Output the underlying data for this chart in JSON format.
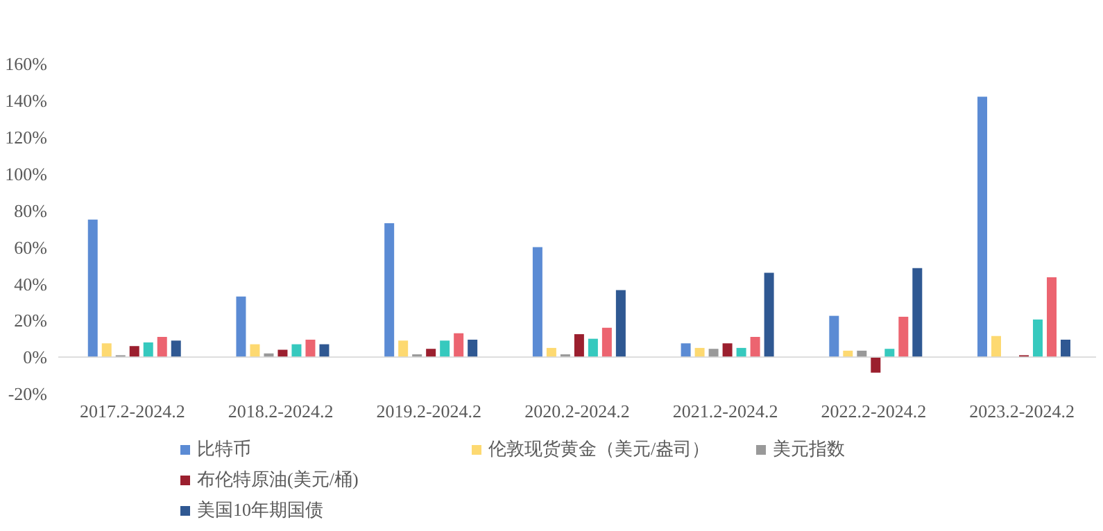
{
  "chart_data": {
    "type": "bar",
    "categories": [
      "2017.2-2024.2",
      "2018.2-2024.2",
      "2019.2-2024.2",
      "2020.2-2024.2",
      "2021.2-2024.2",
      "2022.2-2024.2",
      "2023.2-2024.2"
    ],
    "series": [
      {
        "name": "比特币",
        "color": "#5b8bd4",
        "values": [
          75,
          33,
          73,
          60,
          7.5,
          22.5,
          142
        ]
      },
      {
        "name": "伦敦现货黄金（美元/盎司）",
        "color": "#fdd971",
        "values": [
          7.5,
          7,
          9,
          5,
          5,
          3.5,
          11.5
        ]
      },
      {
        "name": "美元指数",
        "color": "#999999",
        "values": [
          1,
          2,
          1.5,
          1.5,
          4.5,
          3.5,
          0
        ]
      },
      {
        "name": "布伦特原油(美元/桶)",
        "color": "#9b1f2e",
        "values": [
          6,
          4,
          4.5,
          12.5,
          7.5,
          -8.5,
          1
        ]
      },
      {
        "color": "#36c9be",
        "values": [
          8,
          7,
          9,
          10,
          5,
          4.5,
          20.5
        ]
      },
      {
        "color": "#ec6470",
        "values": [
          11,
          9.5,
          13,
          16,
          11,
          22,
          43.5
        ]
      },
      {
        "name": "美国10年期国债",
        "color": "#2f5892",
        "values": [
          9,
          7,
          9.5,
          36.5,
          46,
          48.5,
          9.5
        ]
      }
    ],
    "ylim": [
      -20,
      160
    ],
    "yticks": [
      {
        "value": -20,
        "label": "-20%"
      },
      {
        "value": 0,
        "label": "0%"
      },
      {
        "value": 20,
        "label": "20%"
      },
      {
        "value": 40,
        "label": "40%"
      },
      {
        "value": 60,
        "label": "60%"
      },
      {
        "value": 80,
        "label": "80%"
      },
      {
        "value": 100,
        "label": "100%"
      },
      {
        "value": 120,
        "label": "120%"
      },
      {
        "value": 140,
        "label": "140%"
      },
      {
        "value": 160,
        "label": "160%"
      }
    ],
    "grid": false,
    "legend": "bottom"
  }
}
